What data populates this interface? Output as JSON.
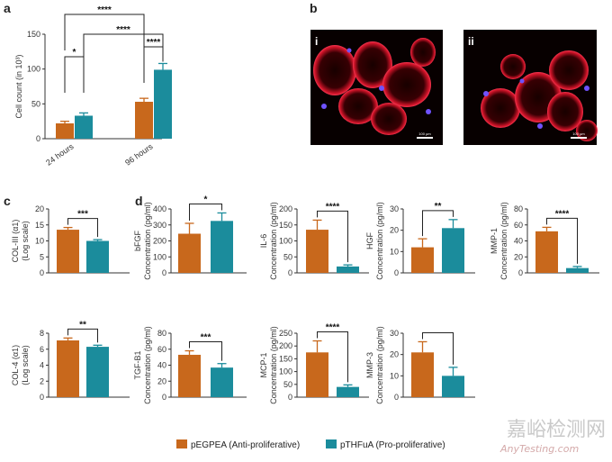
{
  "colors": {
    "orange": "#c8681c",
    "teal": "#1b8c9c"
  },
  "legend": {
    "items": [
      {
        "label": "pEGPEA (Anti-proliferative)",
        "color": "#c8681c"
      },
      {
        "label": "pTHFuA (Pro-proliferative)",
        "color": "#1b8c9c"
      }
    ]
  },
  "panels": {
    "a": "a",
    "b": "b",
    "c": "c",
    "d": "d",
    "micro_i": "i",
    "micro_ii": "ii",
    "scale_text": "100 µm"
  },
  "watermark": {
    "cn": "嘉峪检测网",
    "en": "AnyTesting.com"
  },
  "chart_data": [
    {
      "id": "cell-count",
      "type": "bar",
      "categories": [
        "24 hours",
        "96 hours"
      ],
      "series": [
        {
          "name": "pEGPEA (Anti-proliferative)",
          "values": [
            22,
            53
          ],
          "errors": [
            3,
            5
          ]
        },
        {
          "name": "pTHFuA (Pro-proliferative)",
          "values": [
            33,
            99
          ],
          "errors": [
            4,
            9
          ]
        }
      ],
      "ylabel": "Cell count (in 10³)",
      "ylim": [
        0,
        150
      ],
      "yticks": [
        0,
        50,
        100,
        150
      ],
      "significance": [
        {
          "from": [
            0,
            0
          ],
          "to": [
            1,
            0
          ],
          "label": "****",
          "level": 0
        },
        {
          "from": [
            0,
            0
          ],
          "to": [
            0,
            1
          ],
          "label": "*",
          "level": 1
        },
        {
          "from": [
            0,
            1
          ],
          "to": [
            1,
            1
          ],
          "label": "****",
          "level": 2
        },
        {
          "from": [
            1,
            0
          ],
          "to": [
            1,
            1
          ],
          "label": "****",
          "level": 3
        }
      ]
    },
    {
      "id": "col3",
      "type": "bar",
      "values": [
        13.5,
        10
      ],
      "errors": [
        0.7,
        0.4
      ],
      "ylabel": "COL-III (α1)",
      "ylabel2": "(Log scale)",
      "ylim": [
        0,
        20
      ],
      "yticks": [
        0,
        5,
        10,
        15,
        20
      ],
      "significance": "***"
    },
    {
      "id": "col4",
      "type": "bar",
      "values": [
        7.1,
        6.3
      ],
      "errors": [
        0.3,
        0.2
      ],
      "ylabel": "COL-4 (α1)",
      "ylabel2": "(Log scale)",
      "ylim": [
        0,
        8
      ],
      "yticks": [
        0,
        2,
        4,
        6,
        8
      ],
      "significance": "**"
    },
    {
      "id": "bfgf",
      "type": "bar",
      "values": [
        245,
        325
      ],
      "errors": [
        65,
        50
      ],
      "ylabel": "bFGF",
      "ylabel2": "Concentration (pg/ml)",
      "ylim": [
        0,
        400
      ],
      "yticks": [
        0,
        100,
        200,
        300,
        400
      ],
      "significance": "*"
    },
    {
      "id": "il6",
      "type": "bar",
      "values": [
        135,
        20
      ],
      "errors": [
        30,
        5
      ],
      "ylabel": "IL-6",
      "ylabel2": "Concentration (pg/ml)",
      "ylim": [
        0,
        200
      ],
      "yticks": [
        0,
        50,
        100,
        150,
        200
      ],
      "significance": "****"
    },
    {
      "id": "hgf",
      "type": "bar",
      "values": [
        12,
        21
      ],
      "errors": [
        4,
        4
      ],
      "ylabel": "HGF",
      "ylabel2": "Concentration (pg/ml)",
      "ylim": [
        0,
        30
      ],
      "yticks": [
        0,
        10,
        20,
        30
      ],
      "significance": "**"
    },
    {
      "id": "mmp1",
      "type": "bar",
      "values": [
        52,
        6
      ],
      "errors": [
        5,
        2
      ],
      "ylabel": "MMP-1",
      "ylabel2": "Concentration (pg/ml)",
      "ylim": [
        0,
        80
      ],
      "yticks": [
        0,
        20,
        40,
        60,
        80
      ],
      "significance": "****"
    },
    {
      "id": "tgfb1",
      "type": "bar",
      "values": [
        53,
        37
      ],
      "errors": [
        5,
        5
      ],
      "ylabel": "TGF-B1",
      "ylabel2": "Concentration (pg/ml)",
      "ylim": [
        0,
        80
      ],
      "yticks": [
        0,
        20,
        40,
        60,
        80
      ],
      "significance": "***"
    },
    {
      "id": "mcp1",
      "type": "bar",
      "values": [
        175,
        40
      ],
      "errors": [
        45,
        8
      ],
      "ylabel": "MCP-1",
      "ylabel2": "Concentration (pg/ml)",
      "ylim": [
        0,
        250
      ],
      "yticks": [
        0,
        50,
        100,
        150,
        200,
        250
      ],
      "significance": "****"
    },
    {
      "id": "mmp3",
      "type": "bar",
      "values": [
        21,
        10
      ],
      "errors": [
        5,
        4
      ],
      "ylabel": "MMP-3",
      "ylabel2": "Concentration (pg/ml)",
      "ylim": [
        0,
        30
      ],
      "yticks": [
        0,
        10,
        20,
        30
      ],
      "significance": ""
    }
  ]
}
